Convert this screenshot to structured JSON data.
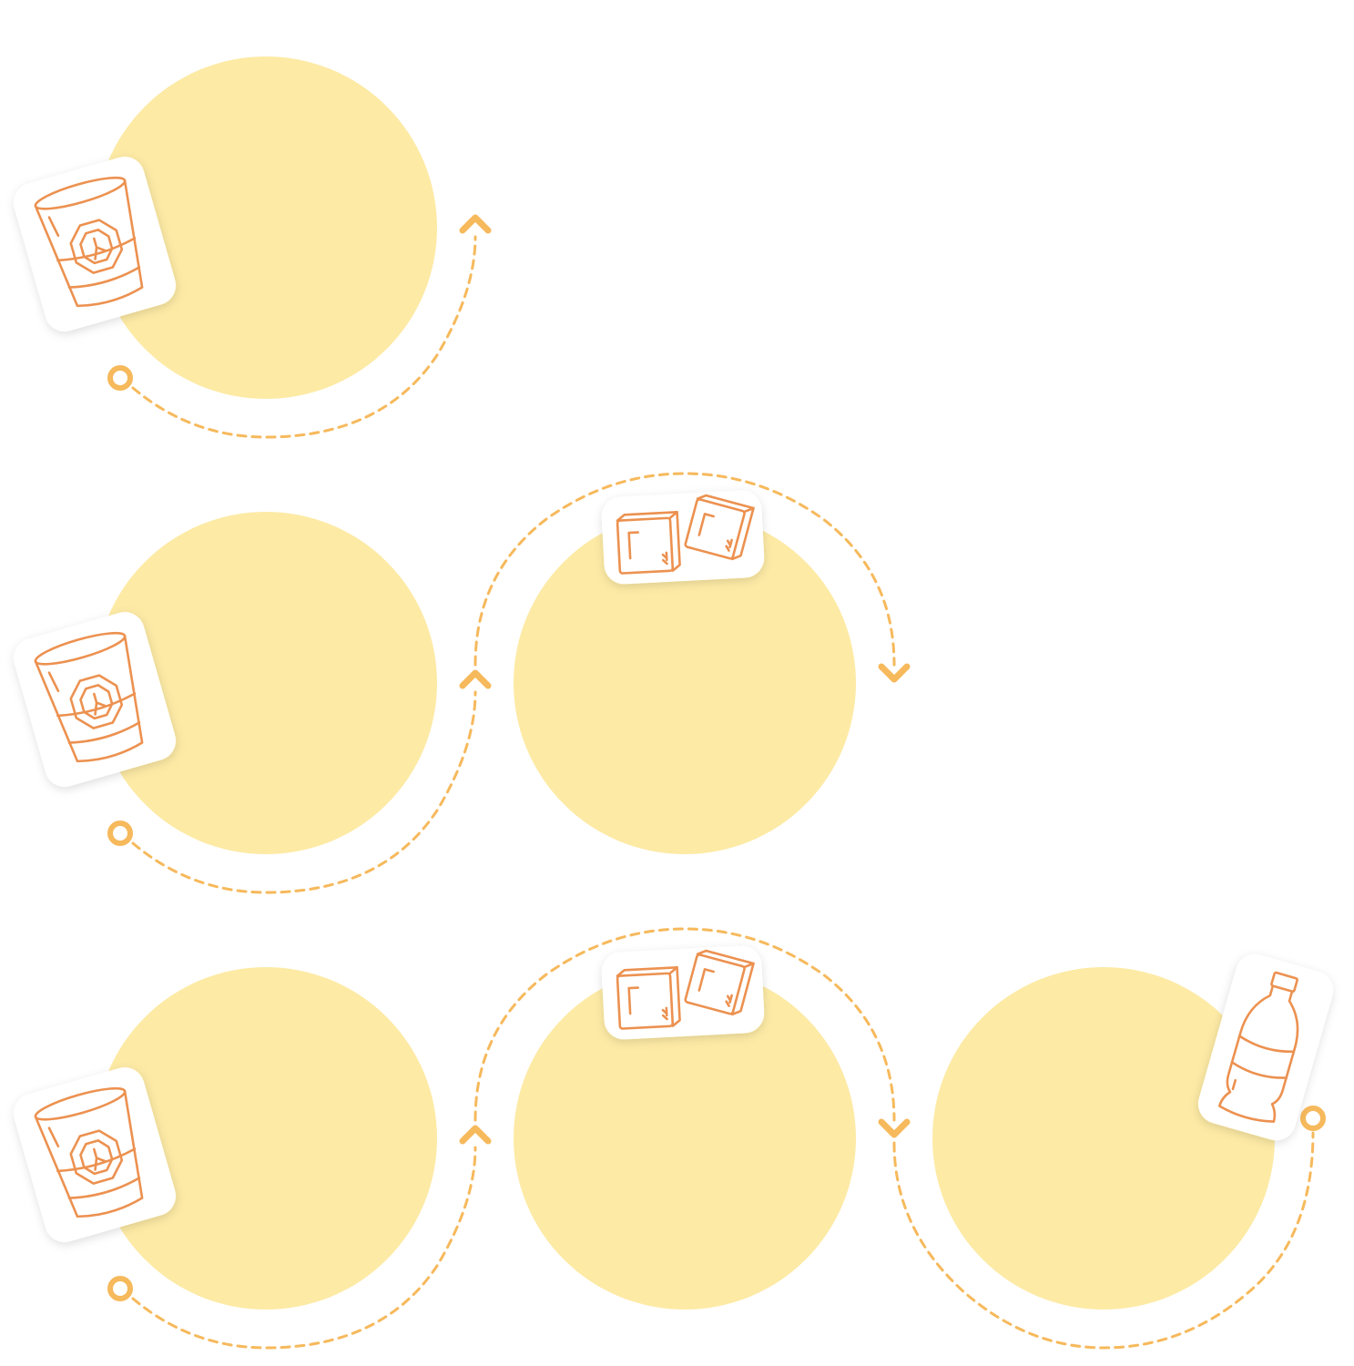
{
  "colors": {
    "circle_fill": "#fdeaa5",
    "connector_stroke": "#f6b95c",
    "icon_stroke": "#ec9150",
    "sticker_fill": "#ffffff",
    "background": "#ffffff"
  },
  "rows": [
    {
      "steps": [
        {
          "icon": "glass-with-ice-icon"
        }
      ]
    },
    {
      "steps": [
        {
          "icon": "glass-with-ice-icon"
        },
        {
          "icon": "ice-cubes-icon"
        }
      ]
    },
    {
      "steps": [
        {
          "icon": "glass-with-ice-icon"
        },
        {
          "icon": "ice-cubes-icon"
        },
        {
          "icon": "bottle-icon"
        }
      ]
    }
  ]
}
